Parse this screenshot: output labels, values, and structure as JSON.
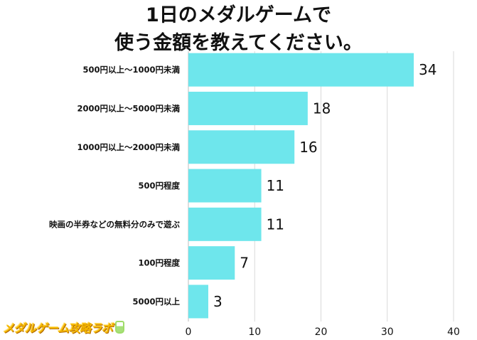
{
  "title_lines": [
    "1日のメダルゲームで",
    "使う金額を教えてください。"
  ],
  "logo_text": "メダルゲーム攻略ラボ",
  "colors": {
    "bar": "#6ee6ec",
    "grid": "#d9d9d9",
    "axis": "#bdbdbd",
    "text": "#111111"
  },
  "chart_data": {
    "type": "bar",
    "orientation": "horizontal",
    "title": "1日のメダルゲームで使う金額を教えてください。",
    "categories": [
      "500円以上〜1000円未満",
      "2000円以上〜5000円未満",
      "1000円以上〜2000円未満",
      "500円程度",
      "映画の半券などの無料分のみで遊ぶ",
      "100円程度",
      "5000円以上"
    ],
    "values": [
      34,
      18,
      16,
      11,
      11,
      7,
      3
    ],
    "xlim": [
      0,
      40
    ],
    "xticks": [
      0,
      10,
      20,
      30,
      40
    ],
    "xlabel": "",
    "ylabel": "",
    "grid": true,
    "data_labels": true,
    "legend": "none"
  }
}
